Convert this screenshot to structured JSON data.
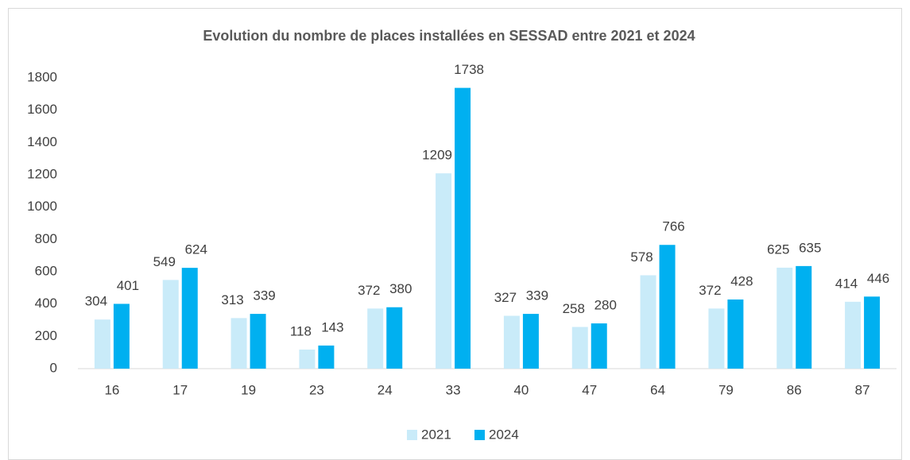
{
  "chart_data": {
    "type": "bar",
    "title": "Evolution du nombre de places installées en SESSAD entre 2021 et 2024",
    "categories": [
      "16",
      "17",
      "19",
      "23",
      "24",
      "33",
      "40",
      "47",
      "64",
      "79",
      "86",
      "87"
    ],
    "series": [
      {
        "name": "2021",
        "color": "#c9ebf9",
        "values": [
          304,
          549,
          313,
          118,
          372,
          1209,
          327,
          258,
          578,
          372,
          625,
          414
        ]
      },
      {
        "name": "2024",
        "color": "#00b0f0",
        "values": [
          401,
          624,
          339,
          143,
          380,
          1738,
          339,
          280,
          766,
          428,
          635,
          446
        ]
      }
    ],
    "ylim": [
      0,
      1800
    ],
    "yticks": [
      0,
      200,
      400,
      600,
      800,
      1000,
      1200,
      1400,
      1600,
      1800
    ],
    "grid": false,
    "legend": "bottom"
  }
}
